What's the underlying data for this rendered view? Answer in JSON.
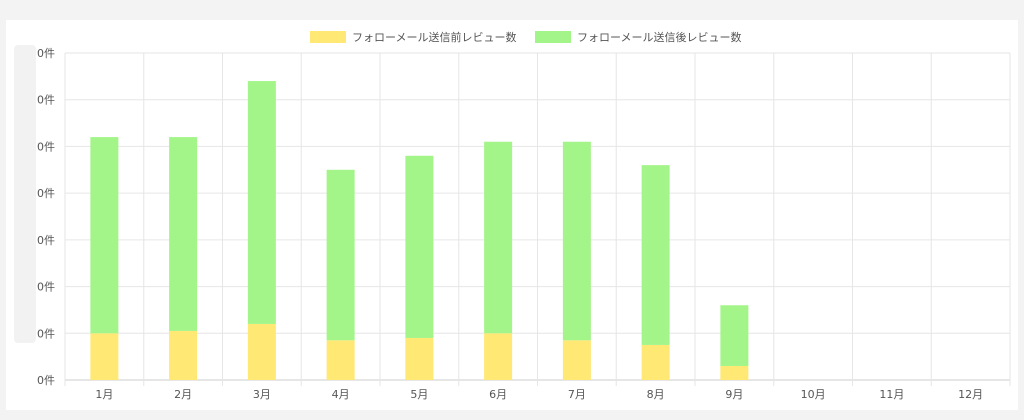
{
  "chart_data": {
    "type": "bar",
    "stacked": true,
    "categories": [
      "1月",
      "2月",
      "3月",
      "4月",
      "5月",
      "6月",
      "7月",
      "8月",
      "9月",
      "10月",
      "11月",
      "12月"
    ],
    "series": [
      {
        "name": "フォローメール送信前レビュー数",
        "color": "#ffe873",
        "values": [
          10,
          10.5,
          12,
          8.5,
          9,
          10,
          8.5,
          7.5,
          3,
          0,
          0,
          0
        ]
      },
      {
        "name": "フォローメール送信後レビュー数",
        "color": "#a3f58a",
        "values": [
          42,
          41.5,
          52,
          36.5,
          39,
          41,
          42.5,
          38.5,
          13,
          0,
          0,
          0
        ]
      }
    ],
    "y_tick_labels": [
      "0件",
      "0件",
      "0件",
      "0件",
      "0件",
      "0件",
      "0件",
      "0件"
    ],
    "ylim": [
      0,
      70
    ],
    "grid": true,
    "legend_position": "top"
  }
}
